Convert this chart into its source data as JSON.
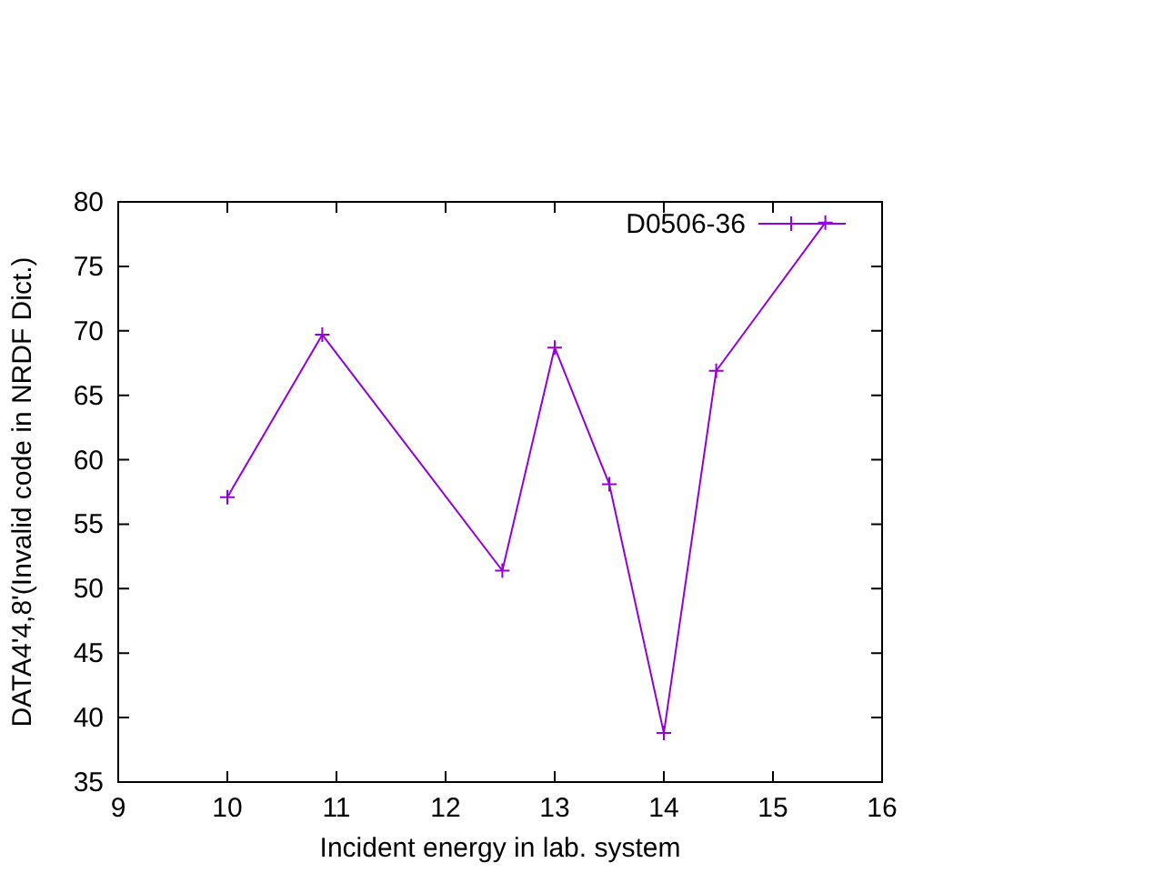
{
  "chart_data": {
    "type": "line",
    "xlabel": "Incident energy in lab. system",
    "ylabel": "DATA4'4,8'(Invalid code in NRDF Dict.)",
    "x": [
      10,
      10.87,
      12.52,
      13,
      13.5,
      14,
      14.48,
      15.48
    ],
    "series": [
      {
        "name": "D0506-36",
        "color": "#9400d3",
        "values": [
          57.1,
          69.7,
          51.4,
          68.7,
          58.1,
          38.8,
          66.9,
          78.4
        ]
      }
    ],
    "xlim": [
      9,
      16
    ],
    "xticks": [
      9,
      10,
      11,
      12,
      13,
      14,
      15,
      16
    ],
    "ylim": [
      35,
      80
    ],
    "yticks": [
      35,
      40,
      45,
      50,
      55,
      60,
      65,
      70,
      75,
      80
    ],
    "legend": "top right",
    "marker": "cross",
    "line_style": "solid",
    "grid": false
  }
}
